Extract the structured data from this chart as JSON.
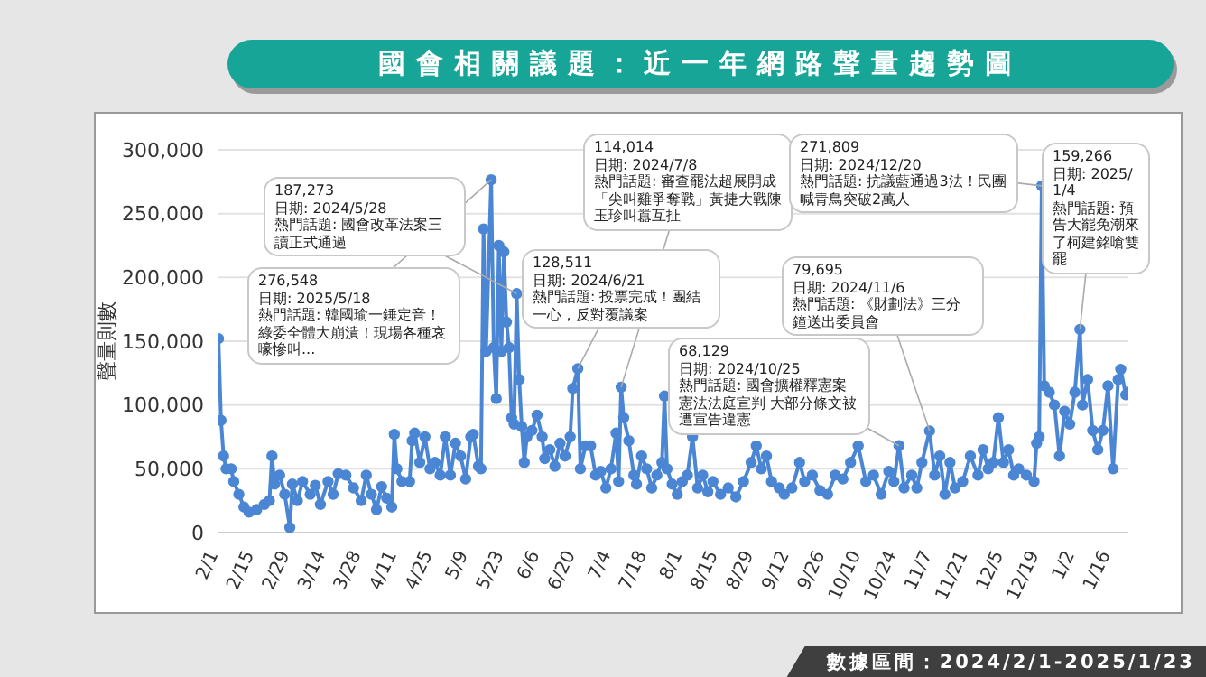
{
  "chart_data": {
    "type": "line",
    "title": "國會相關議題：近一年網路聲量趨勢圖",
    "ylabel": "聲量則數",
    "x": [
      "2024-02-01",
      "2024-02-02",
      "2024-02-03",
      "2024-02-04",
      "2024-02-06",
      "2024-02-07",
      "2024-02-09",
      "2024-02-11",
      "2024-02-13",
      "2024-02-16",
      "2024-02-19",
      "2024-02-21",
      "2024-02-22",
      "2024-02-23",
      "2024-02-25",
      "2024-02-27",
      "2024-02-29",
      "2024-03-01",
      "2024-03-03",
      "2024-03-05",
      "2024-03-08",
      "2024-03-10",
      "2024-03-12",
      "2024-03-15",
      "2024-03-17",
      "2024-03-19",
      "2024-03-22",
      "2024-03-25",
      "2024-03-28",
      "2024-03-30",
      "2024-04-01",
      "2024-04-03",
      "2024-04-05",
      "2024-04-07",
      "2024-04-09",
      "2024-04-10",
      "2024-04-11",
      "2024-04-13",
      "2024-04-16",
      "2024-04-17",
      "2024-04-18",
      "2024-04-20",
      "2024-04-22",
      "2024-04-24",
      "2024-04-26",
      "2024-04-28",
      "2024-04-30",
      "2024-05-02",
      "2024-05-04",
      "2024-05-06",
      "2024-05-08",
      "2024-05-10",
      "2024-05-11",
      "2024-05-13",
      "2024-05-14",
      "2024-05-15",
      "2024-05-16",
      "2024-05-18",
      "2024-05-19",
      "2024-05-20",
      "2024-05-21",
      "2024-05-22",
      "2024-05-23",
      "2024-05-24",
      "2024-05-25",
      "2024-05-26",
      "2024-05-27",
      "2024-05-28",
      "2024-05-29",
      "2024-05-30",
      "2024-05-31",
      "2024-06-01",
      "2024-06-03",
      "2024-06-05",
      "2024-06-07",
      "2024-06-08",
      "2024-06-10",
      "2024-06-12",
      "2024-06-14",
      "2024-06-16",
      "2024-06-18",
      "2024-06-19",
      "2024-06-21",
      "2024-06-22",
      "2024-06-24",
      "2024-06-26",
      "2024-06-28",
      "2024-06-30",
      "2024-07-02",
      "2024-07-04",
      "2024-07-06",
      "2024-07-07",
      "2024-07-08",
      "2024-07-09",
      "2024-07-11",
      "2024-07-13",
      "2024-07-14",
      "2024-07-16",
      "2024-07-18",
      "2024-07-20",
      "2024-07-22",
      "2024-07-24",
      "2024-07-25",
      "2024-07-26",
      "2024-07-28",
      "2024-07-30",
      "2024-08-01",
      "2024-08-03",
      "2024-08-05",
      "2024-08-07",
      "2024-08-09",
      "2024-08-11",
      "2024-08-13",
      "2024-08-16",
      "2024-08-19",
      "2024-08-22",
      "2024-08-25",
      "2024-08-28",
      "2024-08-30",
      "2024-09-01",
      "2024-09-03",
      "2024-09-05",
      "2024-09-08",
      "2024-09-10",
      "2024-09-13",
      "2024-09-16",
      "2024-09-18",
      "2024-09-21",
      "2024-09-24",
      "2024-09-27",
      "2024-09-30",
      "2024-10-03",
      "2024-10-06",
      "2024-10-09",
      "2024-10-12",
      "2024-10-15",
      "2024-10-18",
      "2024-10-21",
      "2024-10-23",
      "2024-10-25",
      "2024-10-27",
      "2024-10-30",
      "2024-11-01",
      "2024-11-03",
      "2024-11-06",
      "2024-11-08",
      "2024-11-10",
      "2024-11-12",
      "2024-11-14",
      "2024-11-16",
      "2024-11-19",
      "2024-11-22",
      "2024-11-25",
      "2024-11-27",
      "2024-11-29",
      "2024-12-01",
      "2024-12-03",
      "2024-12-05",
      "2024-12-07",
      "2024-12-09",
      "2024-12-11",
      "2024-12-14",
      "2024-12-17",
      "2024-12-18",
      "2024-12-19",
      "2024-12-20",
      "2024-12-21",
      "2024-12-23",
      "2024-12-25",
      "2024-12-27",
      "2024-12-29",
      "2024-12-31",
      "2025-01-02",
      "2025-01-04",
      "2025-01-05",
      "2025-01-07",
      "2025-01-09",
      "2025-01-11",
      "2025-01-13",
      "2025-01-15",
      "2025-01-17",
      "2025-01-19",
      "2025-01-20",
      "2025-01-22",
      "2025-01-23"
    ],
    "series": [
      {
        "color": "#4a86d4",
        "values": [
          152000,
          88000,
          60000,
          50000,
          50000,
          40000,
          30000,
          20000,
          16000,
          18000,
          22000,
          25000,
          60000,
          38000,
          45000,
          30000,
          4000,
          38000,
          25000,
          40000,
          30000,
          37000,
          22000,
          40000,
          30000,
          46000,
          45000,
          35000,
          25000,
          45000,
          30000,
          18000,
          36000,
          27000,
          20000,
          77000,
          50000,
          40000,
          40000,
          72000,
          78000,
          55000,
          75000,
          50000,
          55000,
          45000,
          75000,
          45000,
          70000,
          60000,
          42000,
          75000,
          77000,
          52000,
          50000,
          238000,
          142000,
          276548,
          145000,
          105000,
          225000,
          142000,
          220000,
          165000,
          145000,
          90000,
          85000,
          187273,
          120000,
          83000,
          55000,
          75000,
          80000,
          92000,
          75000,
          58000,
          65000,
          52000,
          70000,
          60000,
          75000,
          113000,
          128511,
          50000,
          68000,
          68000,
          45000,
          48000,
          35000,
          50000,
          78000,
          40000,
          114014,
          90000,
          72000,
          45000,
          38000,
          60000,
          50000,
          35000,
          45000,
          55000,
          107000,
          50000,
          38000,
          30000,
          40000,
          45000,
          75000,
          35000,
          45000,
          32000,
          40000,
          30000,
          35000,
          28000,
          40000,
          55000,
          68000,
          50000,
          60000,
          40000,
          35000,
          30000,
          35000,
          55000,
          40000,
          45000,
          33000,
          30000,
          45000,
          42000,
          55000,
          68000,
          40000,
          45000,
          30000,
          48000,
          40000,
          68129,
          35000,
          45000,
          35000,
          55000,
          79695,
          45000,
          60000,
          30000,
          55000,
          35000,
          40000,
          60000,
          45000,
          65000,
          50000,
          55000,
          90000,
          55000,
          65000,
          45000,
          50000,
          45000,
          40000,
          70000,
          75000,
          271809,
          115000,
          110000,
          100000,
          60000,
          95000,
          85000,
          110000,
          159266,
          100000,
          120000,
          80000,
          65000,
          80000,
          115000,
          50000,
          120000,
          128000,
          108000,
          110000
        ]
      }
    ],
    "xlim": [
      "2024-02-01",
      "2025-01-23"
    ],
    "xticks": [
      {
        "value": "2024-02-01",
        "label": "2/1"
      },
      {
        "value": "2024-02-15",
        "label": "2/15"
      },
      {
        "value": "2024-02-29",
        "label": "2/29"
      },
      {
        "value": "2024-03-14",
        "label": "3/14"
      },
      {
        "value": "2024-03-28",
        "label": "3/28"
      },
      {
        "value": "2024-04-11",
        "label": "4/11"
      },
      {
        "value": "2024-04-25",
        "label": "4/25"
      },
      {
        "value": "2024-05-09",
        "label": "5/9"
      },
      {
        "value": "2024-05-23",
        "label": "5/23"
      },
      {
        "value": "2024-06-06",
        "label": "6/6"
      },
      {
        "value": "2024-06-20",
        "label": "6/20"
      },
      {
        "value": "2024-07-04",
        "label": "7/4"
      },
      {
        "value": "2024-07-18",
        "label": "7/18"
      },
      {
        "value": "2024-08-01",
        "label": "8/1"
      },
      {
        "value": "2024-08-15",
        "label": "8/15"
      },
      {
        "value": "2024-08-29",
        "label": "8/29"
      },
      {
        "value": "2024-09-12",
        "label": "9/12"
      },
      {
        "value": "2024-09-26",
        "label": "9/26"
      },
      {
        "value": "2024-10-10",
        "label": "10/10"
      },
      {
        "value": "2024-10-24",
        "label": "10/24"
      },
      {
        "value": "2024-11-07",
        "label": "11/7"
      },
      {
        "value": "2024-11-21",
        "label": "11/21"
      },
      {
        "value": "2024-12-05",
        "label": "12/5"
      },
      {
        "value": "2024-12-19",
        "label": "12/19"
      },
      {
        "value": "2025-01-02",
        "label": "1/2"
      },
      {
        "value": "2025-01-16",
        "label": "1/16"
      }
    ],
    "ylim": [
      0,
      300000
    ],
    "yticks": [
      {
        "value": 0,
        "label": "0"
      },
      {
        "value": 50000,
        "label": "50,000"
      },
      {
        "value": 100000,
        "label": "100,000"
      },
      {
        "value": 150000,
        "label": "150,000"
      },
      {
        "value": 200000,
        "label": "200,000"
      },
      {
        "value": 250000,
        "label": "250,000"
      },
      {
        "value": 300000,
        "label": "300,000"
      }
    ],
    "grid": "y",
    "legend": false,
    "marker": "circle",
    "line_style": "solid",
    "annotations": [
      {
        "text": "187,273\n日期: 2024/5/28\n熱門話題: 國會改革法案三讀正式通過",
        "x": "2024-05-28",
        "y": 187273
      },
      {
        "text": "276,548\n日期: 2025/5/18\n熱門話題: 韓國瑜一錘定音！綠委全體大崩潰！現場各種哀嚎慘叫...",
        "x": "2024-05-18",
        "y": 276548
      },
      {
        "text": "114,014\n日期: 2024/7/8\n熱門話題: 審查罷法超展開成「尖叫雞爭奪戰」黃捷大戰陳玉珍叫囂互扯",
        "x": "2024-07-08",
        "y": 114014
      },
      {
        "text": "128,511\n日期: 2024/6/21\n熱門話題: 投票完成！團結一心，反對覆議案",
        "x": "2024-06-21",
        "y": 128511
      },
      {
        "text": "271,809\n日期: 2024/12/20\n熱門話題: 抗議藍通過3法！民團喊青鳥突破2萬人",
        "x": "2024-12-20",
        "y": 271809
      },
      {
        "text": "68,129\n日期: 2024/10/25\n熱門話題: 國會擴權釋憲案憲法法庭宣判 大部分條文被遭宣告違憲",
        "x": "2024-10-25",
        "y": 68129
      },
      {
        "text": "79,695\n日期: 2024/11/6\n熱門話題: 《財劃法》三分鐘送出委員會",
        "x": "2024-11-06",
        "y": 79695
      },
      {
        "text": "159,266\n日期: 2025/1/4\n熱門話題: 預告大罷免潮來了柯建銘嗆雙罷",
        "x": "2025-01-04",
        "y": 159266
      },
      "數據區間：2024/2/1-2025/1/23"
    ]
  }
}
